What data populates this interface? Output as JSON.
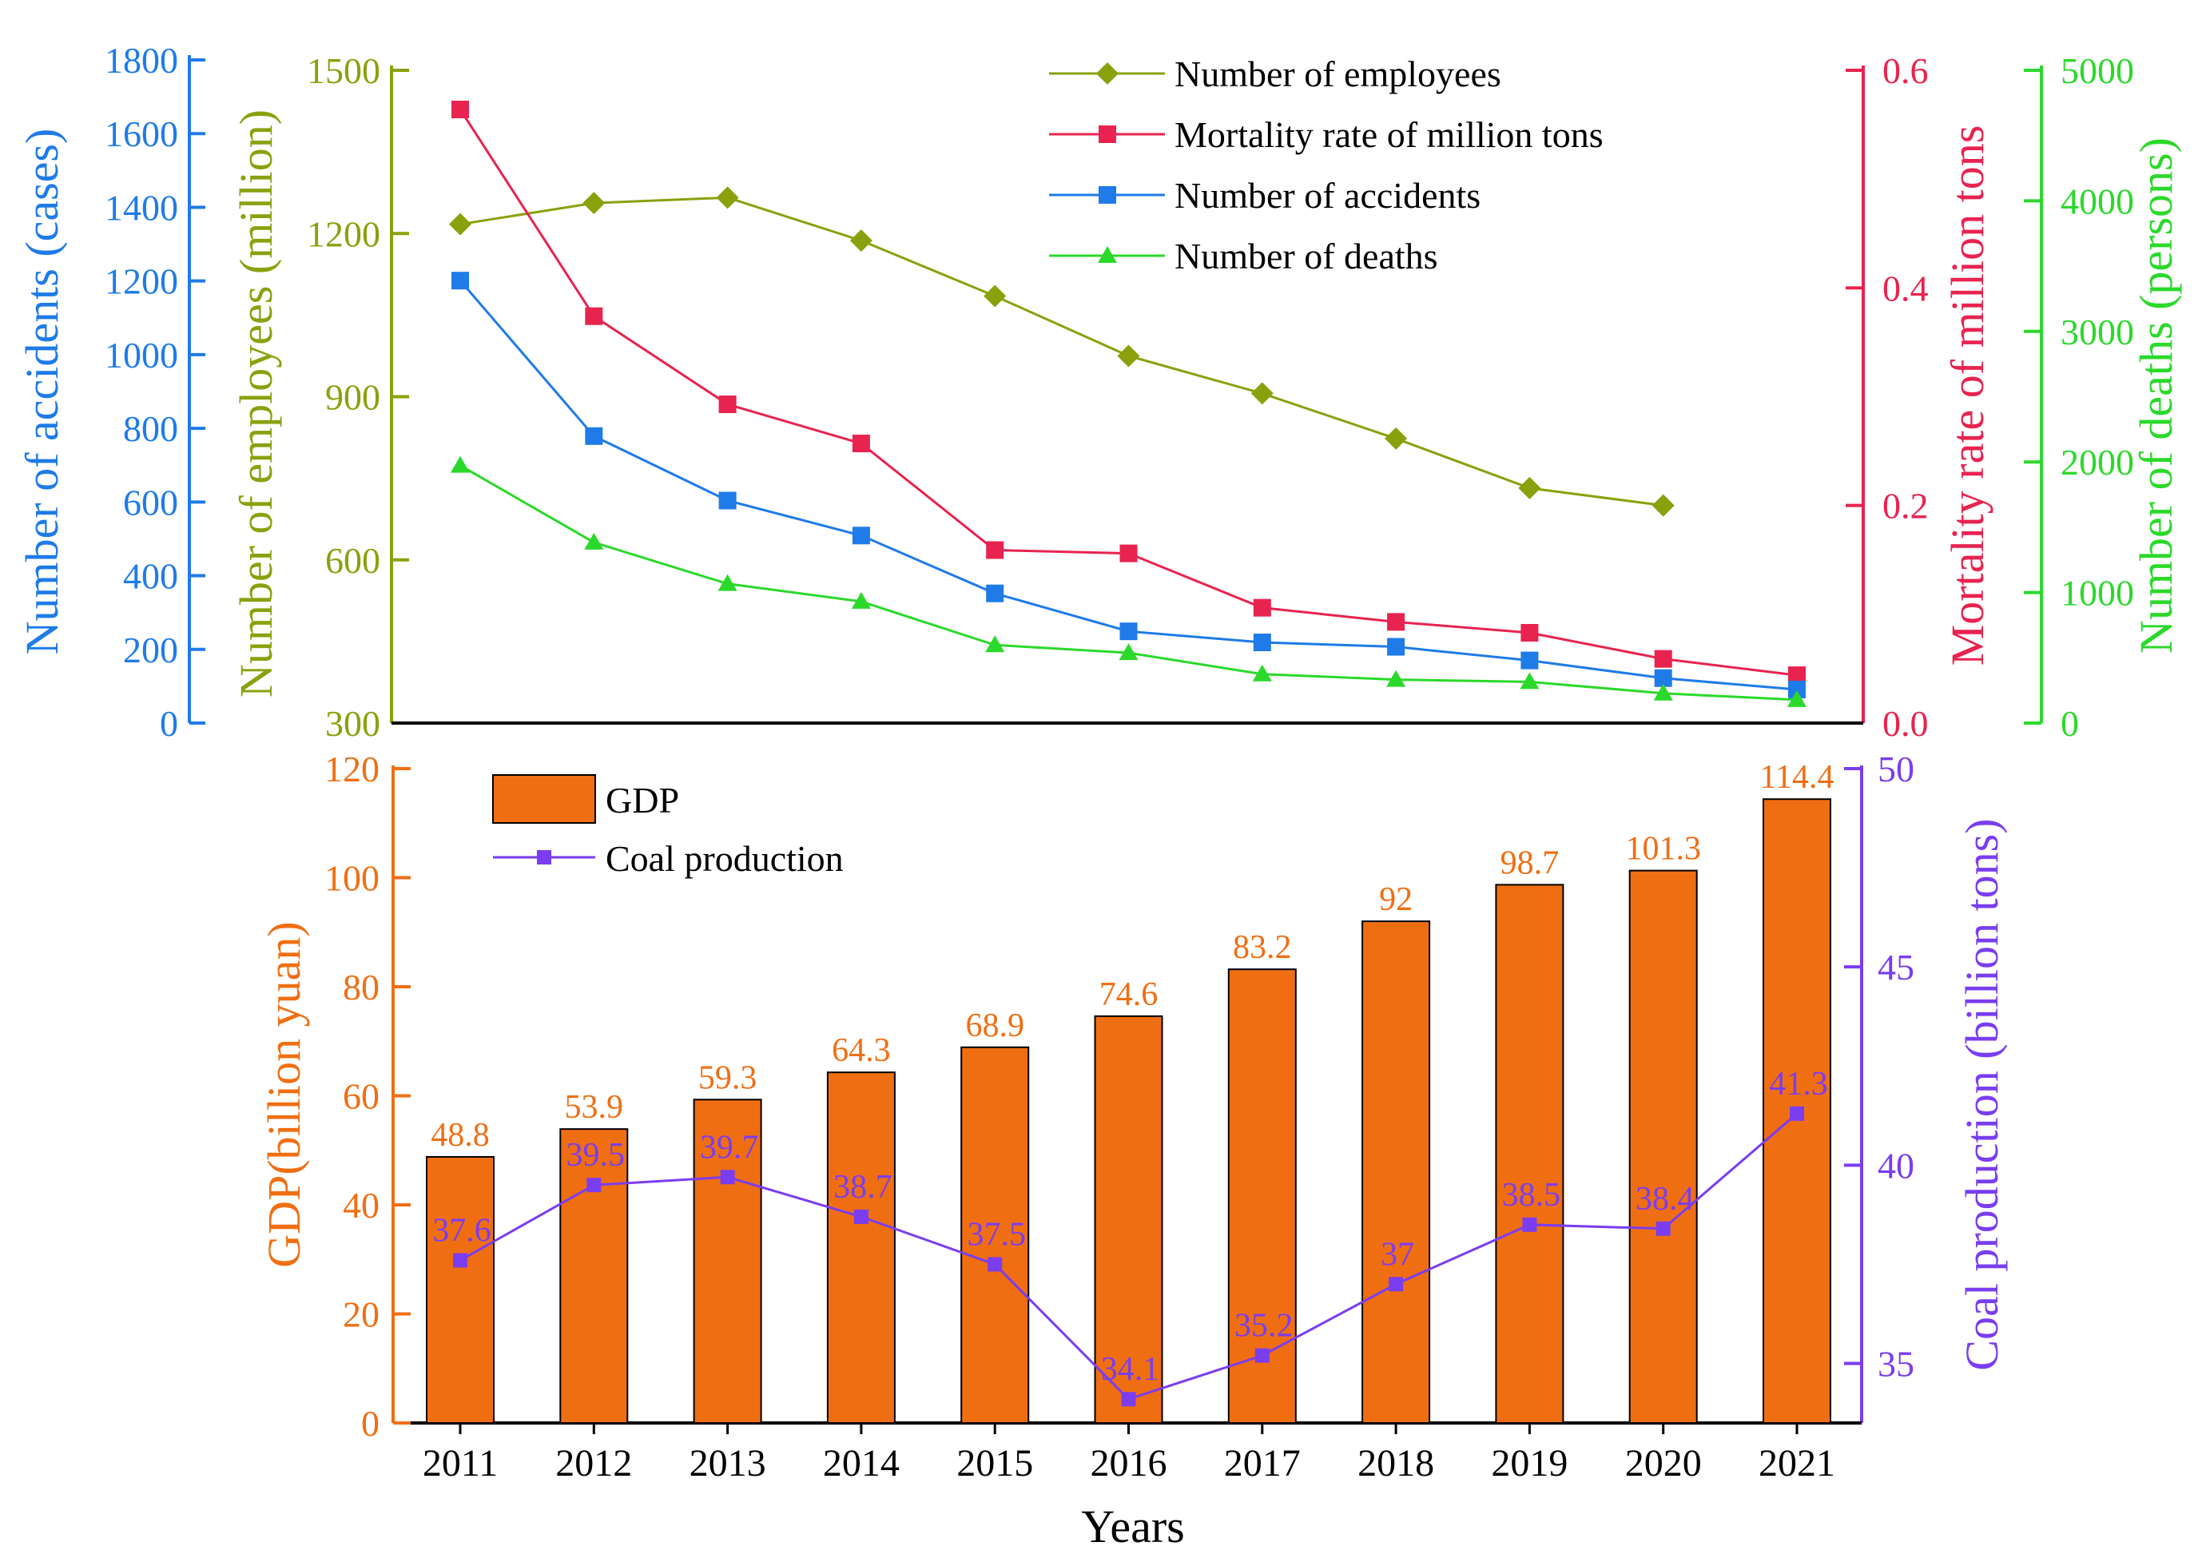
{
  "chart_data": [
    {
      "type": "line",
      "title": "",
      "x": [
        "2011",
        "2012",
        "2013",
        "2014",
        "2015",
        "2016",
        "2017",
        "2018",
        "2019",
        "2020",
        "2021"
      ],
      "axes": {
        "accidents": {
          "label": "Number of accidents (cases)",
          "ylim": [
            0,
            1800
          ],
          "ticks": [
            "0",
            "200",
            "400",
            "600",
            "800",
            "1000",
            "1200",
            "1400",
            "1600",
            "1800"
          ],
          "color": "#1e7be8"
        },
        "employees": {
          "label": "Number of employees (million)",
          "ylim": [
            300,
            1500
          ],
          "ticks": [
            "300",
            "600",
            "900",
            "1200",
            "1500"
          ],
          "color": "#8aa10d"
        },
        "mortality": {
          "label": "Mortality rate of million tons",
          "ylim": [
            0.0,
            0.6
          ],
          "ticks": [
            "0.0",
            "0.2",
            "0.4",
            "0.6"
          ],
          "color": "#e8234f"
        },
        "deaths": {
          "label": "Number of deaths (persons)",
          "ylim": [
            0,
            5000
          ],
          "ticks": [
            "0",
            "1000",
            "2000",
            "3000",
            "4000",
            "5000"
          ],
          "color": "#2bd92b"
        }
      },
      "series": [
        {
          "name": "Number of employees",
          "axis": "employees",
          "marker": "diamond",
          "color": "#8aa10d",
          "values": [
            1217,
            1256,
            1266,
            1187,
            1085,
            975,
            906,
            823,
            732,
            700,
            null
          ]
        },
        {
          "name": "Mortality rate of million tons",
          "axis": "mortality",
          "marker": "square",
          "color": "#e8234f",
          "values": [
            0.564,
            0.374,
            0.293,
            0.257,
            0.159,
            0.156,
            0.106,
            0.093,
            0.083,
            0.059,
            0.044
          ]
        },
        {
          "name": "Number of accidents",
          "axis": "accidents",
          "marker": "square",
          "color": "#1e7be8",
          "values": [
            1201,
            779,
            604,
            509,
            352,
            249,
            219,
            207,
            170,
            122,
            91
          ]
        },
        {
          "name": "Number of deaths",
          "axis": "deaths",
          "marker": "triangle",
          "color": "#2bd92b",
          "values": [
            1973,
            1384,
            1067,
            931,
            598,
            538,
            375,
            333,
            316,
            228,
            178
          ]
        }
      ]
    },
    {
      "type": "bar",
      "title": "",
      "categories": [
        "2011",
        "2012",
        "2013",
        "2014",
        "2015",
        "2016",
        "2017",
        "2018",
        "2019",
        "2020",
        "2021"
      ],
      "xlabel": "Years",
      "axes": {
        "gdp": {
          "label": "GDP(billion yuan)",
          "ylim": [
            0,
            120
          ],
          "ticks": [
            "0",
            "20",
            "40",
            "60",
            "80",
            "100",
            "120"
          ],
          "color": "#f06e12"
        },
        "coal": {
          "label": "Coal production (billion tons)",
          "ylim": [
            33.5,
            50
          ],
          "ticks": [
            "35",
            "40",
            "45",
            "50"
          ],
          "color": "#7a3df0"
        }
      },
      "series": [
        {
          "name": "GDP",
          "kind": "bar",
          "axis": "gdp",
          "color": "#f06e12",
          "values": [
            48.8,
            53.9,
            59.3,
            64.3,
            68.9,
            74.6,
            83.2,
            92,
            98.7,
            101.3,
            114.4
          ],
          "labels": [
            "48.8",
            "53.9",
            "59.3",
            "64.3",
            "68.9",
            "74.6",
            "83.2",
            "92",
            "98.7",
            "101.3",
            "114.4"
          ]
        },
        {
          "name": "Coal production",
          "kind": "line",
          "axis": "coal",
          "color": "#7a3df0",
          "values": [
            37.6,
            39.5,
            39.7,
            38.7,
            37.5,
            34.1,
            35.2,
            37,
            38.5,
            38.4,
            41.3
          ],
          "labels": [
            "37.6",
            "39.5",
            "39.7",
            "38.7",
            "37.5",
            "34.1",
            "35.2",
            "37",
            "38.5",
            "38.4",
            "41.3"
          ]
        }
      ]
    }
  ]
}
